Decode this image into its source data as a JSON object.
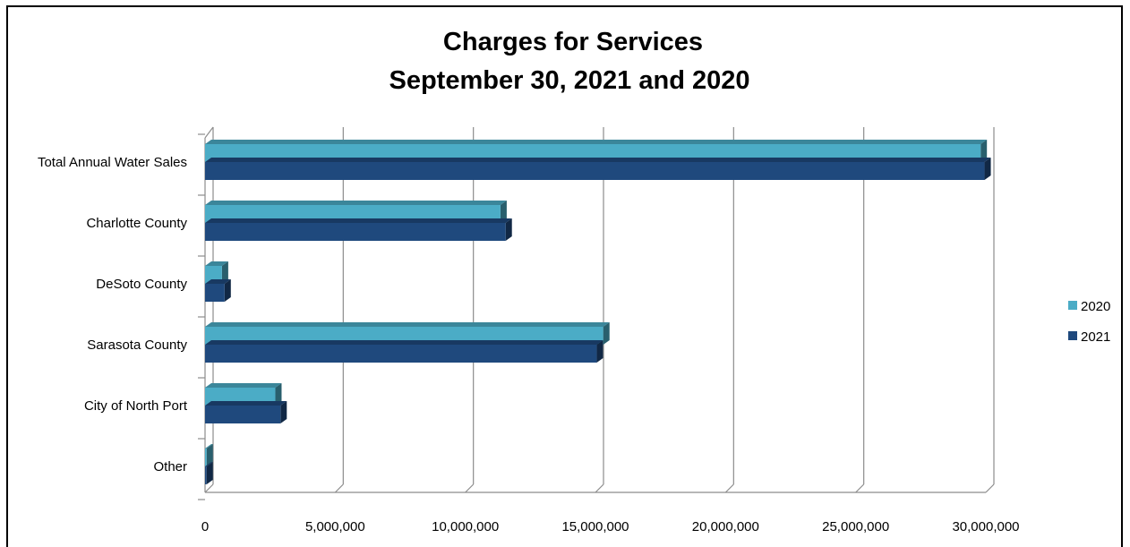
{
  "chart_data": {
    "type": "bar",
    "orientation": "horizontal",
    "title": "Charges for Services",
    "subtitle": "September 30, 2021 and 2020",
    "categories": [
      "Total Annual Water Sales",
      "Charlotte County",
      "DeSoto County",
      "Sarasota County",
      "City of North Port",
      "Other"
    ],
    "series": [
      {
        "name": "2020",
        "color": "#4bacc6",
        "values": [
          29800000,
          11350000,
          650000,
          15300000,
          2700000,
          60000
        ]
      },
      {
        "name": "2021",
        "color": "#1f497d",
        "values": [
          29950000,
          11550000,
          750000,
          15050000,
          2900000,
          60000
        ]
      }
    ],
    "xlim": [
      0,
      30000000
    ],
    "xticks": [
      "0",
      "5,000,000",
      "10,000,000",
      "15,000,000",
      "20,000,000",
      "25,000,000",
      "30,000,000"
    ],
    "grid": true,
    "legend_position": "right"
  }
}
